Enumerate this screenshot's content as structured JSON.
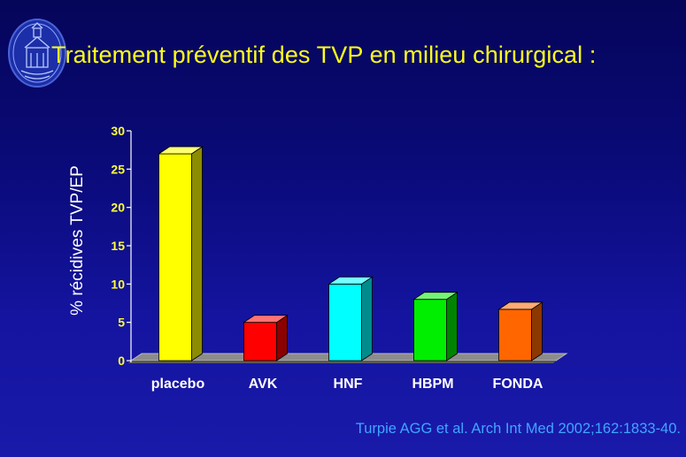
{
  "slide": {
    "title": "Traitement préventif des TVP en milieu chirurgical :",
    "citation": "Turpie AGG et al. Arch Int Med 2002;162:1833-40."
  },
  "chart_data": {
    "type": "bar",
    "categories": [
      "placebo",
      "AVK",
      "HNF",
      "HBPM",
      "FONDA"
    ],
    "values": [
      27,
      5,
      10,
      8,
      6.7
    ],
    "colors": [
      "#ffff00",
      "#ff0000",
      "#00ffff",
      "#00ee00",
      "#ff6600"
    ],
    "title": "",
    "xlabel": "",
    "ylabel": "% récidives TVP/EP",
    "ylim": [
      0,
      30
    ],
    "yticks": [
      0,
      5,
      10,
      15,
      20,
      25,
      30
    ],
    "grid": false,
    "legend": "none",
    "style": "3d"
  }
}
